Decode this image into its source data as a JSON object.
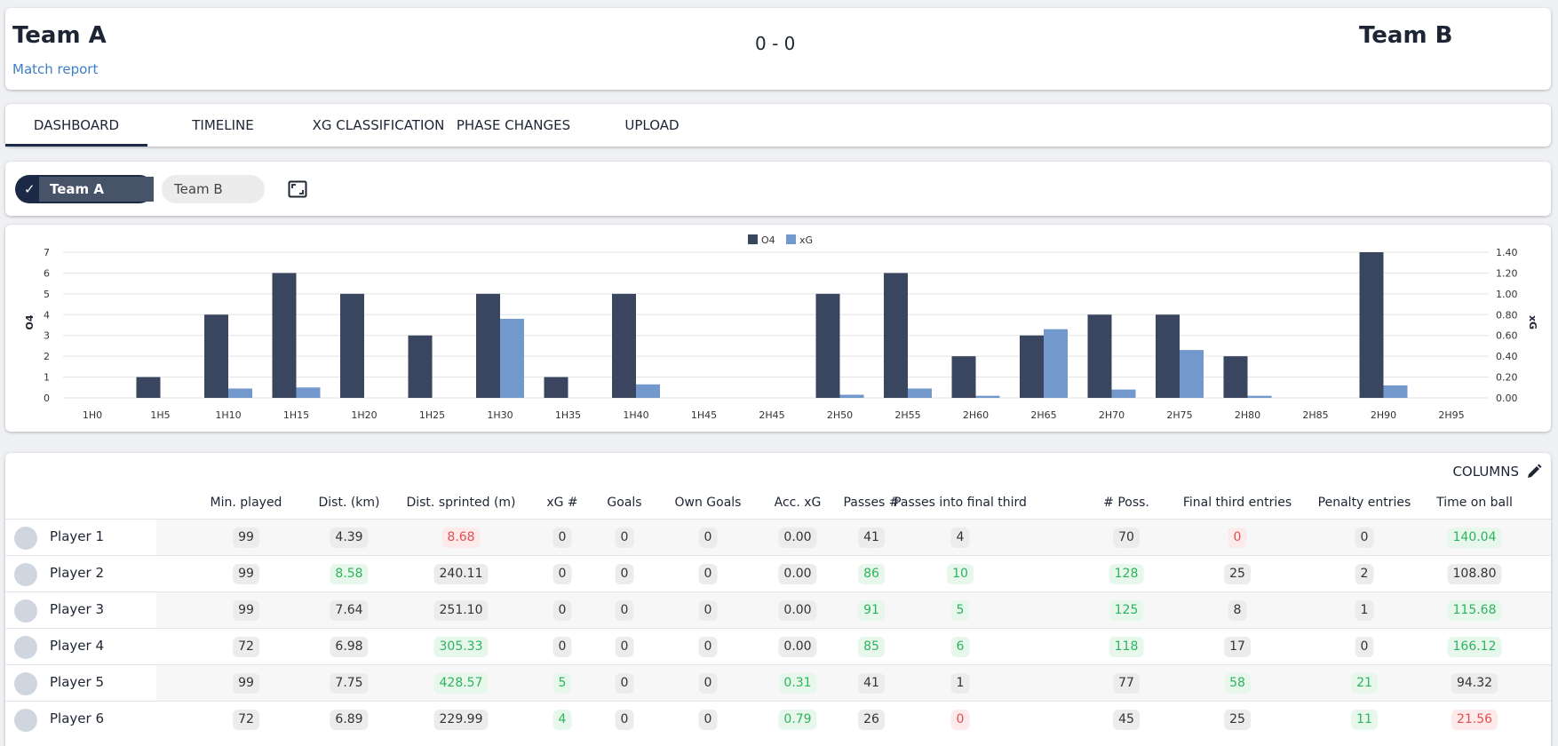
{
  "header": {
    "team_a": "Team A",
    "team_b": "Team B",
    "score": "0 - 0",
    "match_report": "Match report"
  },
  "tabs": [
    {
      "label": "DASHBOARD",
      "active": true
    },
    {
      "label": "TIMELINE",
      "active": false
    },
    {
      "label": "XG CLASSIFICATION",
      "active": false
    },
    {
      "label": "PHASE CHANGES",
      "active": false
    },
    {
      "label": "UPLOAD",
      "active": false
    }
  ],
  "team_select": {
    "team_a": "Team A",
    "team_b": "Team B",
    "selected": "Team A",
    "check_icon": "check-icon",
    "expand_icon": "fullscreen-icon"
  },
  "chart_data": {
    "type": "bar",
    "categories": [
      "1H0",
      "1H5",
      "1H10",
      "1H15",
      "1H20",
      "1H25",
      "1H30",
      "1H35",
      "1H40",
      "1H45",
      "2H45",
      "2H50",
      "2H55",
      "2H60",
      "2H65",
      "2H70",
      "2H75",
      "2H80",
      "2H85",
      "2H90",
      "2H95"
    ],
    "series": [
      {
        "name": "O4",
        "axis": "left",
        "color": "#3a4660",
        "values": [
          0,
          1,
          4,
          6,
          5,
          3,
          5,
          1,
          5,
          0,
          0,
          5,
          6,
          2,
          3,
          4,
          4,
          2,
          0,
          7,
          0
        ]
      },
      {
        "name": "xG",
        "axis": "right",
        "color": "#7399cc",
        "values": [
          0,
          0,
          0.09,
          0.1,
          0,
          0,
          0.76,
          0,
          0.13,
          0,
          0,
          0.03,
          0.09,
          0.02,
          0.66,
          0.08,
          0.46,
          0.02,
          0,
          0.12,
          0
        ]
      }
    ],
    "ylabel_left": "O4",
    "ylabel_right": "xG",
    "ylim_left": [
      0,
      7
    ],
    "ylim_right": [
      0,
      1.4
    ],
    "yticks_left": [
      "0",
      "1",
      "2",
      "3",
      "4",
      "5",
      "6",
      "7"
    ],
    "yticks_right": [
      "0.00",
      "0.20",
      "0.40",
      "0.60",
      "0.80",
      "1.00",
      "1.20",
      "1.40"
    ],
    "legend": "top-center",
    "grid": true
  },
  "table": {
    "columns_label": "COLUMNS",
    "edit_icon": "pencil-icon",
    "headers": [
      "Min. played",
      "Dist. (km)",
      "Dist. sprinted (m)",
      "xG #",
      "Goals",
      "Own Goals",
      "Acc. xG",
      "Passes #",
      "Passes into final third",
      "# Poss.",
      "Final third entries",
      "Penalty entries",
      "Time on ball"
    ],
    "rows": [
      {
        "player": "Player 1",
        "cells": [
          {
            "v": "99",
            "s": "n"
          },
          {
            "v": "4.39",
            "s": "n"
          },
          {
            "v": "8.68",
            "s": "r"
          },
          {
            "v": "0",
            "s": "n"
          },
          {
            "v": "0",
            "s": "n"
          },
          {
            "v": "0",
            "s": "n"
          },
          {
            "v": "0.00",
            "s": "n"
          },
          {
            "v": "41",
            "s": "n"
          },
          {
            "v": "4",
            "s": "n"
          },
          {
            "v": "70",
            "s": "n"
          },
          {
            "v": "0",
            "s": "r"
          },
          {
            "v": "0",
            "s": "n"
          },
          {
            "v": "140.04",
            "s": "g"
          }
        ]
      },
      {
        "player": "Player 2",
        "cells": [
          {
            "v": "99",
            "s": "n"
          },
          {
            "v": "8.58",
            "s": "g"
          },
          {
            "v": "240.11",
            "s": "n"
          },
          {
            "v": "0",
            "s": "n"
          },
          {
            "v": "0",
            "s": "n"
          },
          {
            "v": "0",
            "s": "n"
          },
          {
            "v": "0.00",
            "s": "n"
          },
          {
            "v": "86",
            "s": "g"
          },
          {
            "v": "10",
            "s": "g"
          },
          {
            "v": "128",
            "s": "g"
          },
          {
            "v": "25",
            "s": "n"
          },
          {
            "v": "2",
            "s": "n"
          },
          {
            "v": "108.80",
            "s": "n"
          }
        ]
      },
      {
        "player": "Player 3",
        "cells": [
          {
            "v": "99",
            "s": "n"
          },
          {
            "v": "7.64",
            "s": "n"
          },
          {
            "v": "251.10",
            "s": "n"
          },
          {
            "v": "0",
            "s": "n"
          },
          {
            "v": "0",
            "s": "n"
          },
          {
            "v": "0",
            "s": "n"
          },
          {
            "v": "0.00",
            "s": "n"
          },
          {
            "v": "91",
            "s": "g"
          },
          {
            "v": "5",
            "s": "g"
          },
          {
            "v": "125",
            "s": "g"
          },
          {
            "v": "8",
            "s": "n"
          },
          {
            "v": "1",
            "s": "n"
          },
          {
            "v": "115.68",
            "s": "g"
          }
        ]
      },
      {
        "player": "Player 4",
        "cells": [
          {
            "v": "72",
            "s": "n"
          },
          {
            "v": "6.98",
            "s": "n"
          },
          {
            "v": "305.33",
            "s": "g"
          },
          {
            "v": "0",
            "s": "n"
          },
          {
            "v": "0",
            "s": "n"
          },
          {
            "v": "0",
            "s": "n"
          },
          {
            "v": "0.00",
            "s": "n"
          },
          {
            "v": "85",
            "s": "g"
          },
          {
            "v": "6",
            "s": "g"
          },
          {
            "v": "118",
            "s": "g"
          },
          {
            "v": "17",
            "s": "n"
          },
          {
            "v": "0",
            "s": "n"
          },
          {
            "v": "166.12",
            "s": "g"
          }
        ]
      },
      {
        "player": "Player 5",
        "cells": [
          {
            "v": "99",
            "s": "n"
          },
          {
            "v": "7.75",
            "s": "n"
          },
          {
            "v": "428.57",
            "s": "g"
          },
          {
            "v": "5",
            "s": "g"
          },
          {
            "v": "0",
            "s": "n"
          },
          {
            "v": "0",
            "s": "n"
          },
          {
            "v": "0.31",
            "s": "g"
          },
          {
            "v": "41",
            "s": "n"
          },
          {
            "v": "1",
            "s": "n"
          },
          {
            "v": "77",
            "s": "n"
          },
          {
            "v": "58",
            "s": "g"
          },
          {
            "v": "21",
            "s": "g"
          },
          {
            "v": "94.32",
            "s": "n"
          }
        ]
      },
      {
        "player": "Player 6",
        "cells": [
          {
            "v": "72",
            "s": "n"
          },
          {
            "v": "6.89",
            "s": "n"
          },
          {
            "v": "229.99",
            "s": "n"
          },
          {
            "v": "4",
            "s": "g"
          },
          {
            "v": "0",
            "s": "n"
          },
          {
            "v": "0",
            "s": "n"
          },
          {
            "v": "0.79",
            "s": "g"
          },
          {
            "v": "26",
            "s": "n"
          },
          {
            "v": "0",
            "s": "r"
          },
          {
            "v": "45",
            "s": "n"
          },
          {
            "v": "25",
            "s": "n"
          },
          {
            "v": "11",
            "s": "g"
          },
          {
            "v": "21.56",
            "s": "r"
          }
        ]
      }
    ]
  }
}
